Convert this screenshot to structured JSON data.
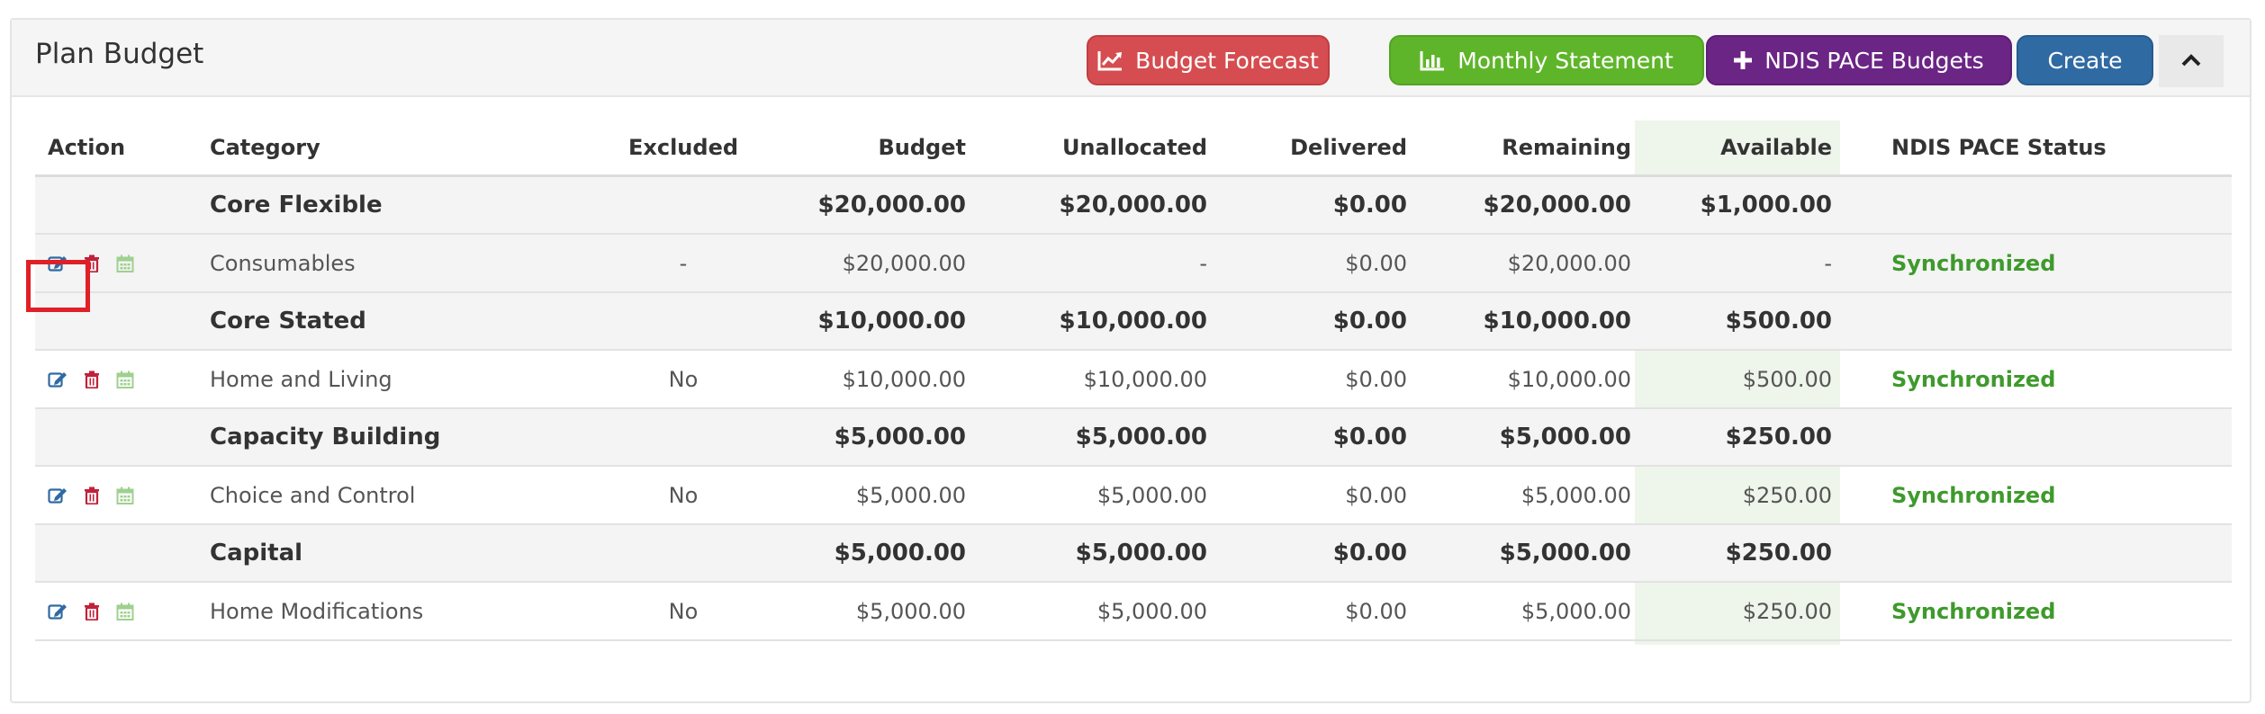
{
  "panel": {
    "title": "Plan Budget",
    "buttons": {
      "forecast": {
        "label": "Budget Forecast",
        "icon": "line-chart-icon",
        "color": "#d54d50"
      },
      "monthly": {
        "label": "Monthly Statement",
        "icon": "bar-chart-icon",
        "color": "#5fb52a"
      },
      "pace": {
        "label": "NDIS PACE Budgets",
        "icon": "plus-icon",
        "color": "#6b2585"
      },
      "create": {
        "label": "Create",
        "color": "#2f6aa3"
      },
      "collapse": {
        "icon": "chevron-up-icon"
      }
    }
  },
  "table": {
    "headers": {
      "action": "Action",
      "category": "Category",
      "excluded": "Excluded",
      "budget": "Budget",
      "unallocated": "Unallocated",
      "delivered": "Delivered",
      "remaining": "Remaining",
      "available": "Available",
      "status": "NDIS PACE Status"
    },
    "rows": [
      {
        "type": "group",
        "category": "Core Flexible",
        "excluded": "",
        "budget": "$20,000.00",
        "unallocated": "$20,000.00",
        "delivered": "$0.00",
        "remaining": "$20,000.00",
        "available": "$1,000.00",
        "status": ""
      },
      {
        "type": "item",
        "category": "Consumables",
        "excluded": "-",
        "budget": "$20,000.00",
        "unallocated": "-",
        "delivered": "$0.00",
        "remaining": "$20,000.00",
        "available": "-",
        "status": "Synchronized"
      },
      {
        "type": "group",
        "category": "Core Stated",
        "excluded": "",
        "budget": "$10,000.00",
        "unallocated": "$10,000.00",
        "delivered": "$0.00",
        "remaining": "$10,000.00",
        "available": "$500.00",
        "status": ""
      },
      {
        "type": "item",
        "category": "Home and Living",
        "excluded": "No",
        "budget": "$10,000.00",
        "unallocated": "$10,000.00",
        "delivered": "$0.00",
        "remaining": "$10,000.00",
        "available": "$500.00",
        "status": "Synchronized"
      },
      {
        "type": "group",
        "category": "Capacity Building",
        "excluded": "",
        "budget": "$5,000.00",
        "unallocated": "$5,000.00",
        "delivered": "$0.00",
        "remaining": "$5,000.00",
        "available": "$250.00",
        "status": ""
      },
      {
        "type": "item",
        "category": "Choice and Control",
        "excluded": "No",
        "budget": "$5,000.00",
        "unallocated": "$5,000.00",
        "delivered": "$0.00",
        "remaining": "$5,000.00",
        "available": "$250.00",
        "status": "Synchronized"
      },
      {
        "type": "group",
        "category": "Capital",
        "excluded": "",
        "budget": "$5,000.00",
        "unallocated": "$5,000.00",
        "delivered": "$0.00",
        "remaining": "$5,000.00",
        "available": "$250.00",
        "status": ""
      },
      {
        "type": "item",
        "category": "Home Modifications",
        "excluded": "No",
        "budget": "$5,000.00",
        "unallocated": "$5,000.00",
        "delivered": "$0.00",
        "remaining": "$5,000.00",
        "available": "$250.00",
        "status": "Synchronized"
      }
    ],
    "row_icons": [
      "edit-icon",
      "delete-icon",
      "calendar-icon"
    ]
  },
  "colors": {
    "status_synchronized": "#3e9a2c",
    "edit_icon": "#2f6aa3",
    "delete_icon": "#c0203a",
    "calendar_icon": "#9fd08f",
    "highlight": "#e01f26"
  }
}
